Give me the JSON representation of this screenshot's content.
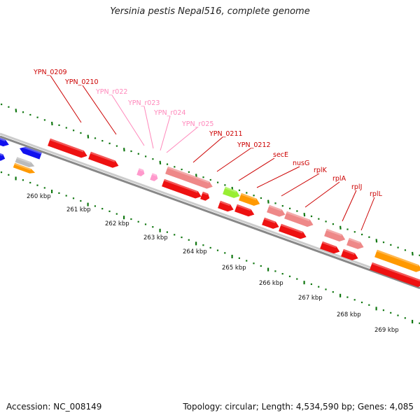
{
  "title": "Yersinia pestis Nepal516, complete genome",
  "footer": {
    "accession": "Accession: NC_008149",
    "summary": "Topology: circular; Length: 4,534,590 bp; Genes: 4,085"
  },
  "colors": {
    "cds": "#ee1111",
    "cds_light": "#ee8888",
    "rna": "#ff99cc",
    "label_cds": "#cc0000",
    "label_rna": "#ff88bb",
    "backbone": "#888888",
    "tick": "#117711",
    "orange": "#ff9900",
    "green": "#99ee33",
    "blue": "#1111ee",
    "grey": "#bbbbbb"
  },
  "scale_labels": [
    "260 kbp",
    "261 kbp",
    "262 kbp",
    "263 kbp",
    "264 kbp",
    "265 kbp",
    "266 kbp",
    "267 kbp",
    "268 kbp",
    "269 kbp"
  ],
  "gene_labels": [
    {
      "text": "YPN_0209",
      "type": "cds"
    },
    {
      "text": "YPN_0210",
      "type": "cds"
    },
    {
      "text": "YPN_r022",
      "type": "rna"
    },
    {
      "text": "YPN_r023",
      "type": "rna"
    },
    {
      "text": "YPN_r024",
      "type": "rna"
    },
    {
      "text": "YPN_r025",
      "type": "rna"
    },
    {
      "text": "YPN_0211",
      "type": "cds"
    },
    {
      "text": "YPN_0212",
      "type": "cds"
    },
    {
      "text": "secE",
      "type": "cds"
    },
    {
      "text": "nusG",
      "type": "cds"
    },
    {
      "text": "rplK",
      "type": "cds"
    },
    {
      "text": "rplA",
      "type": "cds"
    },
    {
      "text": "rplJ",
      "type": "cds"
    },
    {
      "text": "rplL",
      "type": "cds"
    }
  ]
}
